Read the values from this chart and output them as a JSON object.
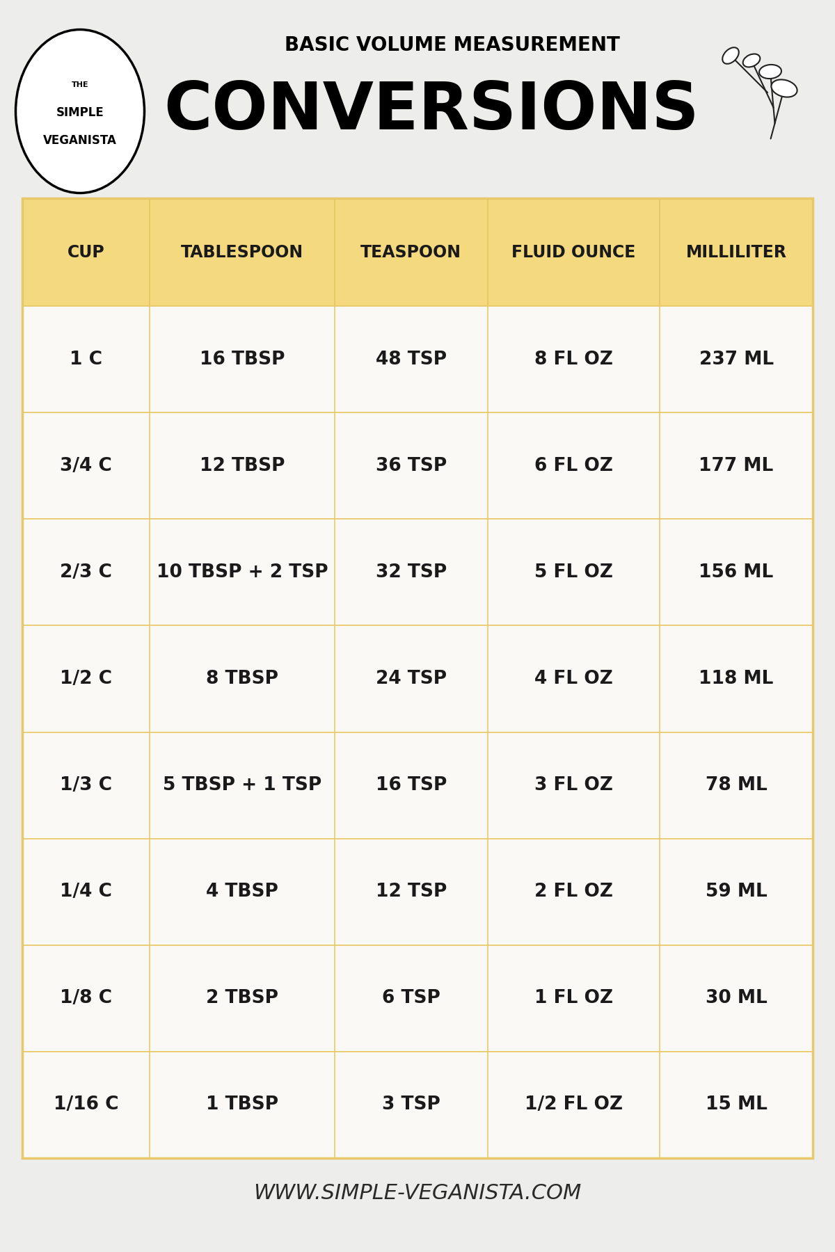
{
  "background_color": "#ededeb",
  "header_text_small": "BASIC VOLUME MEASUREMENT",
  "header_text_large": "CONVERSIONS",
  "logo_text_the": "THE",
  "logo_text_simple": "SIMPLE",
  "logo_text_veganista": "VEGANISTA",
  "website": "WWW.SIMPLE-VEGANISTA.COM",
  "table_header_bg": "#f5d97e",
  "table_row_bg": "#faf9f5",
  "table_border_color": "#e8c96a",
  "table_header_color": "#1a1a1a",
  "table_data_color": "#1a1a1a",
  "columns": [
    "CUP",
    "TABLESPOON",
    "TEASPOON",
    "FLUID OUNCE",
    "MILLILITER"
  ],
  "rows": [
    [
      "1 C",
      "16 TBSP",
      "48 TSP",
      "8 FL OZ",
      "237 ML"
    ],
    [
      "3/4 C",
      "12 TBSP",
      "36 TSP",
      "6 FL OZ",
      "177 ML"
    ],
    [
      "2/3 C",
      "10 TBSP + 2 TSP",
      "32 TSP",
      "5 FL OZ",
      "156 ML"
    ],
    [
      "1/2 C",
      "8 TBSP",
      "24 TSP",
      "4 FL OZ",
      "118 ML"
    ],
    [
      "1/3 C",
      "5 TBSP + 1 TSP",
      "16 TSP",
      "3 FL OZ",
      "78 ML"
    ],
    [
      "1/4 C",
      "4 TBSP",
      "12 TSP",
      "2 FL OZ",
      "59 ML"
    ],
    [
      "1/8 C",
      "2 TBSP",
      "6 TSP",
      "1 FL OZ",
      "30 ML"
    ],
    [
      "1/16 C",
      "1 TBSP",
      "3 TSP",
      "1/2 FL OZ",
      "15 ML"
    ]
  ],
  "header_small_fontsize": 20,
  "conversions_fontsize": 68,
  "col_header_fontsize": 17,
  "cell_fontsize": 19,
  "website_fontsize": 22,
  "logo_the_fontsize": 8,
  "logo_main_fontsize": 12,
  "col_widths_rel": [
    1.0,
    1.45,
    1.2,
    1.35,
    1.2
  ]
}
